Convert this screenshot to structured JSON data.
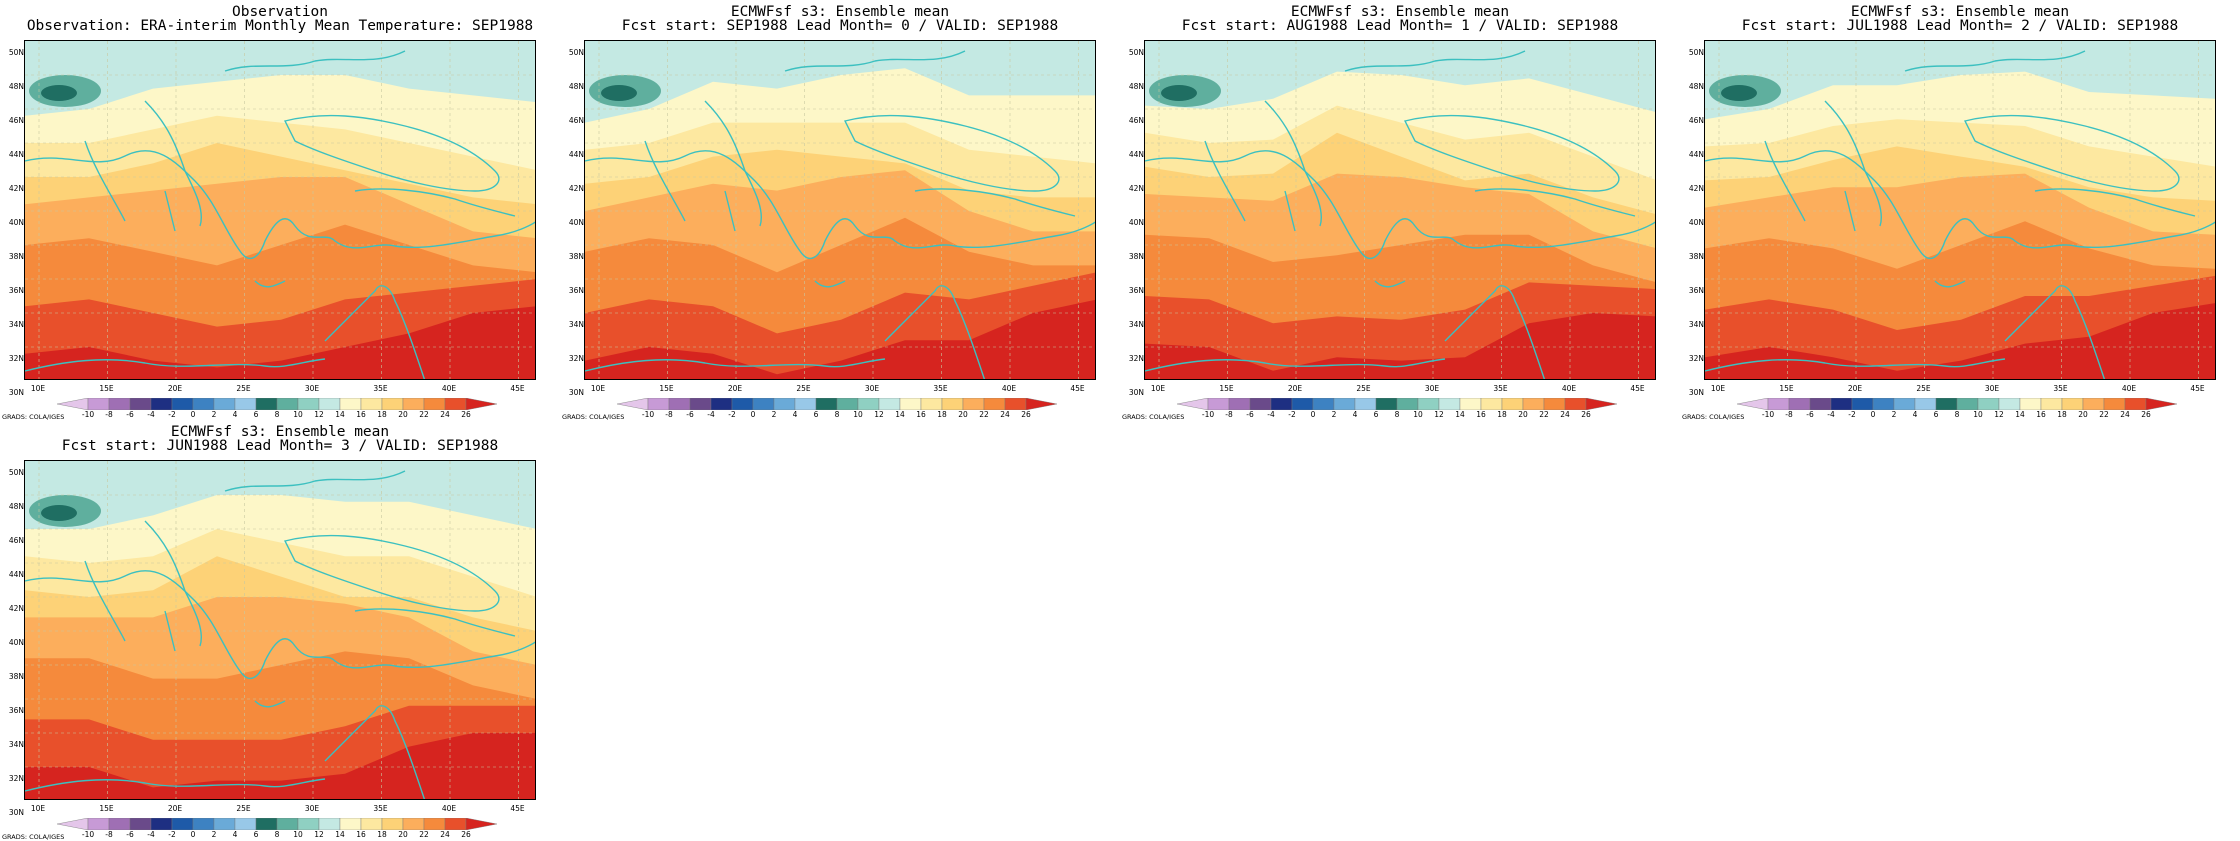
{
  "panels": [
    {
      "title1": "Observation",
      "title2": "Observation: ERA-interim Monthly Mean Temperature: SEP1988"
    },
    {
      "title1": "ECMWFsf s3: Ensemble mean",
      "title2": "Fcst start: SEP1988  Lead Month= 0 / VALID: SEP1988"
    },
    {
      "title1": "ECMWFsf s3: Ensemble mean",
      "title2": "Fcst start: AUG1988  Lead Month= 1 / VALID: SEP1988"
    },
    {
      "title1": "ECMWFsf s3: Ensemble mean",
      "title2": "Fcst start: JUL1988  Lead Month= 2 / VALID: SEP1988"
    },
    {
      "title1": "ECMWFsf s3: Ensemble mean",
      "title2": "Fcst start: JUN1988  Lead Month= 3 / VALID: SEP1988"
    }
  ],
  "lat_labels": [
    "50N",
    "48N",
    "46N",
    "44N",
    "42N",
    "40N",
    "38N",
    "36N",
    "34N",
    "32N",
    "30N"
  ],
  "lon_labels": [
    "10E",
    "15E",
    "20E",
    "25E",
    "30E",
    "35E",
    "40E",
    "45E"
  ],
  "colorbar": {
    "labels": [
      "-10",
      "-8",
      "-6",
      "-4",
      "-2",
      "0",
      "2",
      "4",
      "6",
      "8",
      "10",
      "12",
      "14",
      "16",
      "18",
      "20",
      "22",
      "24",
      "26"
    ],
    "colors": [
      "#e4c6ea",
      "#c79ad6",
      "#9f6fb4",
      "#6a4a8a",
      "#1e2f82",
      "#1e5aa8",
      "#3d82c2",
      "#6aaad8",
      "#98c8e8",
      "#1f6e62",
      "#5faf9e",
      "#8fd0c2",
      "#c4e9e3",
      "#fdf7c8",
      "#fde8a0",
      "#fdd277",
      "#fcae5c",
      "#f58a3c",
      "#e8502b",
      "#d6241f"
    ]
  },
  "grads_label": "GRADS: COLA/IGES"
}
